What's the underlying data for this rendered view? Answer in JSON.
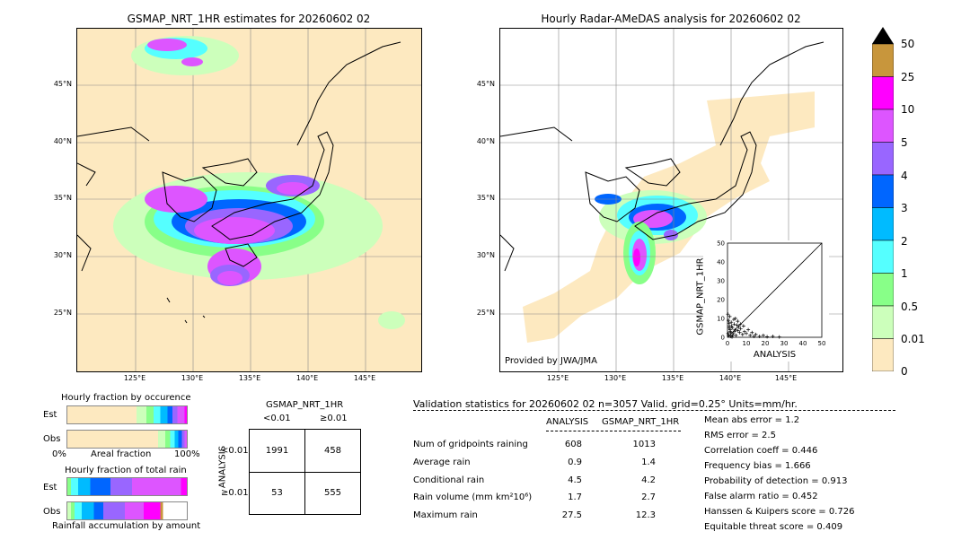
{
  "left_map": {
    "title": "GSMAP_NRT_1HR estimates for 20260602 02",
    "lat_labels": [
      "45°N",
      "40°N",
      "35°N",
      "30°N",
      "25°N"
    ],
    "lon_labels": [
      "125°E",
      "130°E",
      "135°E",
      "140°E",
      "145°E"
    ]
  },
  "right_map": {
    "title": "Hourly Radar-AMeDAS analysis for 20260602 02",
    "lat_labels": [
      "45°N",
      "40°N",
      "35°N",
      "30°N",
      "25°N"
    ],
    "lon_labels": [
      "125°E",
      "130°E",
      "135°E",
      "140°E",
      "145°E"
    ],
    "credit": "Provided by JWA/JMA"
  },
  "colorbar": {
    "labels": [
      "50",
      "25",
      "10",
      "5",
      "4",
      "3",
      "2",
      "1",
      "0.5",
      "0.01",
      "0"
    ],
    "colors": [
      "#c8963c",
      "#ff00ff",
      "#dd55ff",
      "#9966ff",
      "#0066ff",
      "#00bbff",
      "#55ffff",
      "#88ff88",
      "#ccffbb",
      "#fde9c0"
    ],
    "extend_color": "#000000"
  },
  "chart_data": {
    "type": "scatter",
    "xlabel": "ANALYSIS",
    "ylabel": "GSMAP_NRT_1HR",
    "xlim": [
      0,
      50
    ],
    "ylim": [
      0,
      50
    ],
    "xticks": [
      "0",
      "10",
      "20",
      "30",
      "40",
      "50"
    ],
    "yticks": [
      "0",
      "10",
      "20",
      "30",
      "40",
      "50"
    ],
    "marker": "+",
    "x": [
      0.2,
      0.5,
      0.8,
      1.0,
      1.2,
      1.5,
      2.0,
      2.5,
      3.0,
      3.5,
      4.0,
      4.5,
      5.0,
      5.5,
      6.0,
      6.5,
      7.0,
      8.0,
      9.0,
      10.0,
      11.0,
      12.0,
      13.0,
      14.0,
      15.0,
      17.0,
      19.0,
      21.0,
      24.0,
      27.5,
      0.3,
      0.6,
      1.4,
      2.2,
      3.3,
      4.2,
      5.4,
      6.8,
      8.5,
      1.8,
      2.8,
      3.8,
      0.9,
      1.6,
      2.4
    ],
    "y": [
      12.3,
      9.0,
      7.5,
      6.0,
      11.0,
      3.0,
      8.0,
      5.0,
      2.0,
      7.0,
      4.0,
      1.0,
      6.5,
      3.5,
      5.5,
      2.5,
      4.5,
      1.5,
      3.0,
      2.0,
      4.0,
      1.0,
      2.5,
      0.5,
      1.5,
      0.5,
      1.0,
      0.3,
      0.5,
      0.2,
      2.0,
      1.0,
      4.0,
      6.0,
      9.5,
      10.0,
      8.5,
      7.0,
      6.0,
      0.5,
      1.2,
      3.2,
      5.0,
      2.7,
      0.2
    ]
  },
  "occurrence": {
    "title": "Hourly fraction by occurence",
    "rows": [
      "Est",
      "Obs"
    ],
    "axis_left": "0%",
    "axis_mid": "Areal fraction",
    "axis_right": "100%"
  },
  "total_rain": {
    "title": "Hourly fraction of total rain",
    "rows": [
      "Est",
      "Obs"
    ],
    "footer": "Rainfall accumulation by amount"
  },
  "contingency": {
    "title": "GSMAP_NRT_1HR",
    "col_lt": "<0.01",
    "col_ge": "≥0.01",
    "row_label": "ANALYSIS",
    "row_lt": "<0.01",
    "row_ge": "≥0.01",
    "a": "1991",
    "b": "458",
    "c": "53",
    "d": "555"
  },
  "validation": {
    "header": "Validation statistics for 20260602 02  n=3057 Valid. grid=0.25° Units=mm/hr.",
    "col_analysis": "ANALYSIS",
    "col_gsmap": "GSMAP_NRT_1HR",
    "rows": [
      {
        "label": "Num of gridpoints raining",
        "analysis": "608",
        "gsmap": "1013"
      },
      {
        "label": "Average rain",
        "analysis": "0.9",
        "gsmap": "1.4"
      },
      {
        "label": "Conditional rain",
        "analysis": "4.5",
        "gsmap": "4.2"
      },
      {
        "label": "Rain volume (mm km²10⁶)",
        "analysis": "1.7",
        "gsmap": "2.7"
      },
      {
        "label": "Maximum rain",
        "analysis": "27.5",
        "gsmap": "12.3"
      }
    ],
    "scores": [
      "Mean abs error =    1.2",
      "RMS error =    2.5",
      "Correlation coeff =  0.446",
      "Frequency bias =  1.666",
      "Probability of detection =  0.913",
      "False alarm ratio =  0.452",
      "Hanssen & Kuipers score =  0.726",
      "Equitable threat score =  0.409"
    ]
  }
}
